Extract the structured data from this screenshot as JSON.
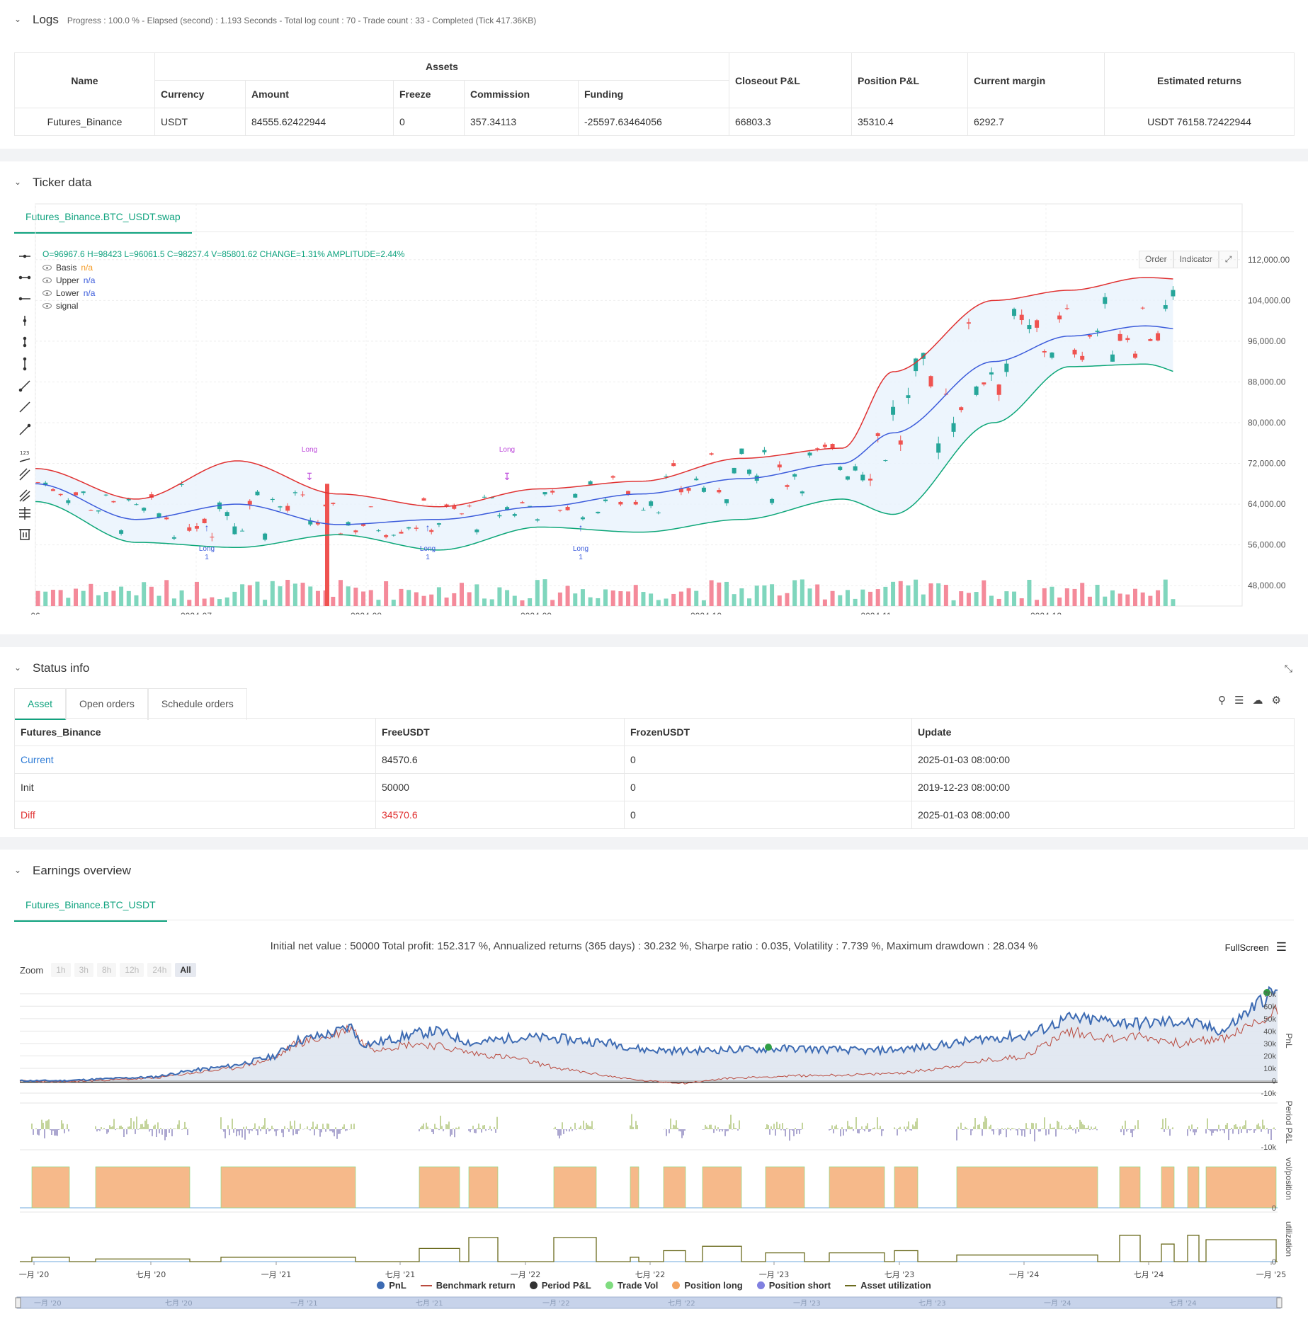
{
  "logs": {
    "title": "Logs",
    "summary": "Progress : 100.0 % - Elapsed (second) : 1.193  Seconds - Total log count : 70 - Trade count : 33 - Completed (Tick 417.36KB)",
    "table": {
      "name_header": "Name",
      "assets_header": "Assets",
      "sub_headers": [
        "Currency",
        "Amount",
        "Freeze",
        "Commission",
        "Funding"
      ],
      "right_headers": [
        "Closeout P&L",
        "Position P&L",
        "Current margin",
        "Estimated returns"
      ],
      "row": [
        "Futures_Binance",
        "USDT",
        "84555.62422944",
        "0",
        "357.34113",
        "-25597.63464056",
        "66803.3",
        "35310.4",
        "6292.7",
        "USDT 76158.72422944"
      ]
    }
  },
  "ticker": {
    "title": "Ticker data",
    "tab": "Futures_Binance.BTC_USDT.swap",
    "ohlc": "O=96967.6 H=98423 L=96061.5 C=98237.4 V=85801.62 CHANGE=1.31% AMPLITUDE=2.44%",
    "legend": [
      {
        "name": "Basis",
        "value": "n/a",
        "color": "#f59a23"
      },
      {
        "name": "Upper",
        "value": "n/a",
        "color": "#3b5bdb"
      },
      {
        "name": "Lower",
        "value": "n/a",
        "color": "#3b5bdb"
      },
      {
        "name": "signal",
        "value": "",
        "color": "#333333"
      }
    ],
    "buttons": [
      "Order",
      "Indicator"
    ],
    "y_ticks": [
      "112,000.00",
      "104,000.00",
      "96,000.00",
      "88,000.00",
      "80,000.00",
      "72,000.00",
      "64,000.00",
      "56,000.00",
      "48,000.00"
    ],
    "x_ticks": [
      "06",
      "2024-07",
      "2024-08",
      "2024-09",
      "2024-10",
      "2024-11",
      "2024-12"
    ],
    "signals": [
      {
        "label": "Long",
        "sub": "1"
      },
      {
        "label": "Long",
        "sub": ""
      },
      {
        "label": "Long",
        "sub": "1"
      },
      {
        "label": "Long",
        "sub": ""
      },
      {
        "label": "Long",
        "sub": "1"
      }
    ]
  },
  "chart_data": {
    "type": "candlestick",
    "x_range": [
      "2024-06",
      "2024-12"
    ],
    "ylim": [
      44000,
      116000
    ],
    "last_candle": {
      "open": 96967.6,
      "high": 98423,
      "low": 96061.5,
      "close": 98237.4,
      "volume": 85801.62
    },
    "indicators": [
      "Basis",
      "Upper",
      "Lower",
      "signal"
    ],
    "basis_approx": [
      [
        0,
        68000
      ],
      [
        40,
        61000
      ],
      [
        80,
        64000
      ],
      [
        120,
        60000
      ],
      [
        160,
        61000
      ],
      [
        200,
        63500
      ],
      [
        240,
        66000
      ],
      [
        280,
        69000
      ],
      [
        320,
        72000
      ],
      [
        340,
        78000
      ],
      [
        380,
        92000
      ],
      [
        410,
        97000
      ],
      [
        440,
        99000
      ],
      [
        460,
        98000
      ]
    ],
    "upper_approx": [
      [
        0,
        71000
      ],
      [
        40,
        65000
      ],
      [
        80,
        72500
      ],
      [
        120,
        66000
      ],
      [
        160,
        63500
      ],
      [
        200,
        67000
      ],
      [
        240,
        68500
      ],
      [
        280,
        73000
      ],
      [
        320,
        75000
      ],
      [
        340,
        90000
      ],
      [
        380,
        104000
      ],
      [
        410,
        106000
      ],
      [
        440,
        108500
      ],
      [
        460,
        108000
      ]
    ],
    "lower_approx": [
      [
        0,
        64500
      ],
      [
        40,
        56500
      ],
      [
        80,
        55500
      ],
      [
        120,
        58000
      ],
      [
        160,
        55000
      ],
      [
        200,
        59500
      ],
      [
        240,
        58500
      ],
      [
        280,
        61000
      ],
      [
        320,
        65000
      ],
      [
        340,
        62000
      ],
      [
        380,
        80000
      ],
      [
        410,
        91000
      ],
      [
        440,
        91500
      ],
      [
        460,
        89000
      ]
    ]
  },
  "status": {
    "title": "Status info",
    "tabs": [
      "Asset",
      "Open orders",
      "Schedule orders"
    ],
    "headers": [
      "Futures_Binance",
      "FreeUSDT",
      "FrozenUSDT",
      "Update"
    ],
    "rows": [
      {
        "label": "Current",
        "free": "84570.6",
        "frozen": "0",
        "update": "2025-01-03 08:00:00",
        "color": "#2f7cd6"
      },
      {
        "label": "Init",
        "free": "50000",
        "frozen": "0",
        "update": "2019-12-23 08:00:00",
        "color": "#333333"
      },
      {
        "label": "Diff",
        "free": "34570.6",
        "frozen": "0",
        "update": "2025-01-03 08:00:00",
        "color": "#e03131"
      }
    ]
  },
  "earnings": {
    "title": "Earnings overview",
    "tab": "Futures_Binance.BTC_USDT",
    "summary": "Initial net value : 50000 Total profit: 152.317 %, Annualized returns (365 days) : 30.232 %, Sharpe ratio : 0.035, Volatility : 7.739 %, Maximum drawdown : 28.034 %",
    "fullscreen": "FullScreen",
    "zoom_label": "Zoom",
    "zoom_buttons": [
      "1h",
      "3h",
      "8h",
      "12h",
      "24h",
      "All"
    ],
    "pnl_ticks": [
      "70k",
      "60k",
      "50k",
      "40k",
      "30k",
      "20k",
      "10k",
      "0",
      "-10k"
    ],
    "period_ticks": [
      "-10k"
    ],
    "pos_ticks": [
      "0"
    ],
    "util_ticks": [
      "0"
    ],
    "axis_titles": [
      "PnL",
      "Period P&L",
      "vol/position",
      "utilization"
    ],
    "x_ticks": [
      "一月 '20",
      "七月 '20",
      "一月 '21",
      "七月 '21",
      "一月 '22",
      "七月 '22",
      "一月 '23",
      "七月 '23",
      "一月 '24",
      "七月 '24",
      "一月 '25"
    ],
    "nav_ticks": [
      "一月 '20",
      "七月 '20",
      "一月 '21",
      "七月 '21",
      "一月 '22",
      "七月 '22",
      "一月 '23",
      "七月 '23",
      "一月 '24",
      "七月 '24"
    ],
    "legend": [
      {
        "name": "PnL",
        "color": "#3d6bb3",
        "shape": "dot"
      },
      {
        "name": "Benchmark return",
        "color": "#b94a3e",
        "shape": "line"
      },
      {
        "name": "Period P&L",
        "color": "#333333",
        "shape": "dot"
      },
      {
        "name": "Trade Vol",
        "color": "#7fdc7f",
        "shape": "dot"
      },
      {
        "name": "Position long",
        "color": "#f4a460",
        "shape": "dot"
      },
      {
        "name": "Position short",
        "color": "#8080e0",
        "shape": "dot"
      },
      {
        "name": "Asset utilization",
        "color": "#6b6b1e",
        "shape": "line"
      }
    ]
  }
}
